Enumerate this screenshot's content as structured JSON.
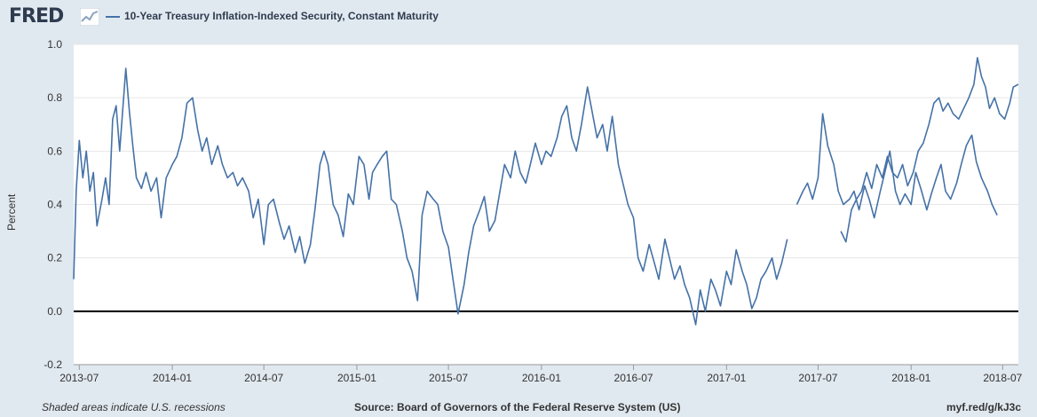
{
  "header": {
    "logo_text": "FRED",
    "series_name": "10-Year Treasury Inflation-Indexed Security, Constant Maturity"
  },
  "colors": {
    "series": "#4572a7",
    "background": "#e1e9f0",
    "plot_background": "#ffffff",
    "zero_line": "#000000"
  },
  "footer": {
    "recession_note": "Shaded areas indicate U.S. recessions",
    "source": "Source: Board of Governors of the Federal Reserve System (US)",
    "short_url": "myf.red/g/kJ3c"
  },
  "chart_data": {
    "type": "line",
    "title": "10-Year Treasury Inflation-Indexed Security, Constant Maturity",
    "xlabel": "",
    "ylabel": "Percent",
    "ylim": [
      -0.2,
      1.0
    ],
    "xlim": [
      "2013-06-20",
      "2018-08-01"
    ],
    "yticks": [
      "-0.2",
      "0.0",
      "0.2",
      "0.4",
      "0.6",
      "0.8",
      "1.0"
    ],
    "xticks": [
      "2013-07",
      "2014-01",
      "2014-07",
      "2015-01",
      "2015-07",
      "2016-01",
      "2016-07",
      "2017-01",
      "2017-07",
      "2018-01",
      "2018-07"
    ],
    "grid": true,
    "legend": "top-left",
    "series": [
      {
        "name": "10-Year Treasury Inflation-Indexed Security, Constant Maturity",
        "points": [
          [
            "2013-06-20",
            0.12
          ],
          [
            "2013-06-25",
            0.45
          ],
          [
            "2013-07-01",
            0.64
          ],
          [
            "2013-07-08",
            0.5
          ],
          [
            "2013-07-15",
            0.6
          ],
          [
            "2013-07-22",
            0.45
          ],
          [
            "2013-07-29",
            0.52
          ],
          [
            "2013-08-05",
            0.32
          ],
          [
            "2013-08-15",
            0.42
          ],
          [
            "2013-08-22",
            0.5
          ],
          [
            "2013-08-29",
            0.4
          ],
          [
            "2013-09-05",
            0.72
          ],
          [
            "2013-09-12",
            0.77
          ],
          [
            "2013-09-19",
            0.6
          ],
          [
            "2013-09-26",
            0.78
          ],
          [
            "2013-10-01",
            0.91
          ],
          [
            "2013-10-08",
            0.75
          ],
          [
            "2013-10-15",
            0.62
          ],
          [
            "2013-10-22",
            0.5
          ],
          [
            "2013-11-01",
            0.46
          ],
          [
            "2013-11-10",
            0.52
          ],
          [
            "2013-11-20",
            0.45
          ],
          [
            "2013-12-01",
            0.5
          ],
          [
            "2013-12-10",
            0.35
          ],
          [
            "2013-12-20",
            0.5
          ],
          [
            "2014-01-01",
            0.55
          ],
          [
            "2014-01-10",
            0.58
          ],
          [
            "2014-01-20",
            0.65
          ],
          [
            "2014-01-30",
            0.78
          ],
          [
            "2014-02-10",
            0.8
          ],
          [
            "2014-02-20",
            0.68
          ],
          [
            "2014-03-01",
            0.6
          ],
          [
            "2014-03-10",
            0.65
          ],
          [
            "2014-03-20",
            0.55
          ],
          [
            "2014-04-01",
            0.62
          ],
          [
            "2014-04-10",
            0.55
          ],
          [
            "2014-04-20",
            0.5
          ],
          [
            "2014-05-01",
            0.52
          ],
          [
            "2014-05-10",
            0.47
          ],
          [
            "2014-05-20",
            0.5
          ],
          [
            "2014-06-01",
            0.45
          ],
          [
            "2014-06-10",
            0.35
          ],
          [
            "2014-06-20",
            0.42
          ],
          [
            "2014-07-01",
            0.25
          ],
          [
            "2014-07-10",
            0.4
          ],
          [
            "2014-07-20",
            0.42
          ],
          [
            "2014-08-01",
            0.33
          ],
          [
            "2014-08-10",
            0.27
          ],
          [
            "2014-08-20",
            0.32
          ],
          [
            "2014-09-01",
            0.22
          ],
          [
            "2014-09-10",
            0.28
          ],
          [
            "2014-09-20",
            0.18
          ],
          [
            "2014-10-01",
            0.25
          ],
          [
            "2014-10-10",
            0.38
          ],
          [
            "2014-10-20",
            0.55
          ],
          [
            "2014-10-28",
            0.6
          ],
          [
            "2014-11-05",
            0.55
          ],
          [
            "2014-11-15",
            0.4
          ],
          [
            "2014-11-25",
            0.36
          ],
          [
            "2014-12-05",
            0.28
          ],
          [
            "2014-12-15",
            0.44
          ],
          [
            "2014-12-25",
            0.4
          ],
          [
            "2015-01-05",
            0.58
          ],
          [
            "2015-01-15",
            0.55
          ],
          [
            "2015-01-25",
            0.42
          ],
          [
            "2015-02-01",
            0.52
          ],
          [
            "2015-02-10",
            0.55
          ],
          [
            "2015-02-20",
            0.58
          ],
          [
            "2015-03-01",
            0.6
          ],
          [
            "2015-03-10",
            0.42
          ],
          [
            "2015-03-20",
            0.4
          ],
          [
            "2015-04-01",
            0.3
          ],
          [
            "2015-04-10",
            0.2
          ],
          [
            "2015-04-20",
            0.15
          ],
          [
            "2015-05-01",
            0.04
          ],
          [
            "2015-05-10",
            0.36
          ],
          [
            "2015-05-20",
            0.45
          ],
          [
            "2015-06-01",
            0.42
          ],
          [
            "2015-06-10",
            0.4
          ],
          [
            "2015-06-20",
            0.3
          ],
          [
            "2015-07-01",
            0.24
          ],
          [
            "2015-07-10",
            0.12
          ],
          [
            "2015-07-20",
            -0.01
          ],
          [
            "2015-08-01",
            0.1
          ],
          [
            "2015-08-10",
            0.22
          ],
          [
            "2015-08-20",
            0.32
          ],
          [
            "2015-09-01",
            0.38
          ],
          [
            "2015-09-10",
            0.43
          ],
          [
            "2015-09-20",
            0.3
          ],
          [
            "2015-10-01",
            0.34
          ],
          [
            "2015-10-10",
            0.44
          ],
          [
            "2015-10-20",
            0.55
          ],
          [
            "2015-11-01",
            0.5
          ],
          [
            "2015-11-10",
            0.6
          ],
          [
            "2015-11-20",
            0.52
          ],
          [
            "2015-12-01",
            0.48
          ],
          [
            "2015-12-10",
            0.55
          ],
          [
            "2015-12-20",
            0.63
          ],
          [
            "2016-01-01",
            0.55
          ],
          [
            "2016-01-10",
            0.6
          ],
          [
            "2016-01-20",
            0.58
          ],
          [
            "2016-02-01",
            0.65
          ],
          [
            "2016-02-10",
            0.73
          ],
          [
            "2016-02-20",
            0.77
          ],
          [
            "2016-03-01",
            0.65
          ],
          [
            "2016-03-10",
            0.6
          ],
          [
            "2016-03-20",
            0.7
          ],
          [
            "2016-04-01",
            0.84
          ],
          [
            "2016-04-10",
            0.75
          ],
          [
            "2016-04-20",
            0.65
          ],
          [
            "2016-05-01",
            0.7
          ],
          [
            "2016-05-10",
            0.6
          ],
          [
            "2016-05-20",
            0.73
          ],
          [
            "2016-06-01",
            0.55
          ],
          [
            "2016-06-10",
            0.48
          ],
          [
            "2016-06-20",
            0.4
          ],
          [
            "2016-07-01",
            0.35
          ],
          [
            "2016-07-10",
            0.2
          ],
          [
            "2016-07-20",
            0.15
          ],
          [
            "2016-08-01",
            0.25
          ],
          [
            "2016-08-10",
            0.19
          ],
          [
            "2016-08-20",
            0.12
          ],
          [
            "2016-09-01",
            0.27
          ],
          [
            "2016-09-10",
            0.2
          ],
          [
            "2016-09-20",
            0.12
          ],
          [
            "2016-10-01",
            0.17
          ],
          [
            "2016-10-10",
            0.1
          ],
          [
            "2016-10-20",
            0.05
          ],
          [
            "2016-11-01",
            -0.05
          ],
          [
            "2016-11-10",
            0.08
          ],
          [
            "2016-11-20",
            0.0
          ],
          [
            "2016-12-01",
            0.12
          ],
          [
            "2016-12-10",
            0.08
          ],
          [
            "2016-12-20",
            0.02
          ],
          [
            "2017-01-01",
            0.15
          ],
          [
            "2017-01-10",
            0.1
          ],
          [
            "2017-01-20",
            0.23
          ],
          [
            "2017-02-01",
            0.15
          ],
          [
            "2017-02-10",
            0.1
          ],
          [
            "2017-02-20",
            0.01
          ],
          [
            "2017-03-01",
            0.05
          ],
          [
            "2017-03-10",
            0.12
          ],
          [
            "2017-03-20",
            0.15
          ],
          [
            "2017-04-01",
            0.2
          ],
          [
            "2017-04-10",
            0.12
          ],
          [
            "2017-04-20",
            0.18
          ],
          [
            "2017-05-01",
            0.27
          ]
        ]
      },
      {
        "name": "",
        "points": [
          [
            "2017-05-20",
            0.4
          ],
          [
            "2017-06-01",
            0.45
          ],
          [
            "2017-06-10",
            0.48
          ],
          [
            "2017-06-20",
            0.42
          ],
          [
            "2017-07-01",
            0.5
          ],
          [
            "2017-07-10",
            0.74
          ],
          [
            "2017-07-20",
            0.62
          ],
          [
            "2017-08-01",
            0.55
          ],
          [
            "2017-08-10",
            0.45
          ],
          [
            "2017-08-20",
            0.4
          ],
          [
            "2017-09-01",
            0.42
          ],
          [
            "2017-09-10",
            0.45
          ],
          [
            "2017-09-20",
            0.38
          ],
          [
            "2017-10-01",
            0.47
          ],
          [
            "2017-10-10",
            0.42
          ],
          [
            "2017-10-20",
            0.35
          ],
          [
            "2017-11-01",
            0.45
          ],
          [
            "2017-11-10",
            0.52
          ],
          [
            "2017-11-20",
            0.6
          ],
          [
            "2017-12-01",
            0.45
          ],
          [
            "2017-12-10",
            0.4
          ],
          [
            "2017-12-20",
            0.44
          ],
          [
            "2018-01-01",
            0.4
          ],
          [
            "2018-01-10",
            0.52
          ],
          [
            "2018-01-20",
            0.46
          ],
          [
            "2018-02-01",
            0.38
          ],
          [
            "2018-02-10",
            0.44
          ],
          [
            "2018-02-20",
            0.5
          ],
          [
            "2018-03-01",
            0.55
          ],
          [
            "2018-03-10",
            0.45
          ],
          [
            "2018-03-20",
            0.42
          ],
          [
            "2018-04-01",
            0.48
          ],
          [
            "2018-04-10",
            0.55
          ],
          [
            "2018-04-20",
            0.62
          ],
          [
            "2018-05-01",
            0.66
          ],
          [
            "2018-05-10",
            0.56
          ],
          [
            "2018-05-20",
            0.5
          ],
          [
            "2018-06-01",
            0.45
          ],
          [
            "2018-06-10",
            0.4
          ],
          [
            "2018-06-20",
            0.36
          ]
        ]
      },
      {
        "name": "",
        "points": [
          [
            "2017-08-15",
            0.3
          ],
          [
            "2017-08-25",
            0.26
          ],
          [
            "2017-09-05",
            0.38
          ],
          [
            "2017-09-15",
            0.42
          ],
          [
            "2017-09-25",
            0.45
          ],
          [
            "2017-10-05",
            0.52
          ],
          [
            "2017-10-15",
            0.46
          ],
          [
            "2017-10-25",
            0.55
          ],
          [
            "2017-11-05",
            0.5
          ],
          [
            "2017-11-15",
            0.58
          ],
          [
            "2017-11-25",
            0.52
          ],
          [
            "2017-12-05",
            0.5
          ],
          [
            "2017-12-15",
            0.55
          ],
          [
            "2017-12-25",
            0.47
          ],
          [
            "2018-01-05",
            0.52
          ],
          [
            "2018-01-15",
            0.6
          ],
          [
            "2018-01-25",
            0.63
          ],
          [
            "2018-02-05",
            0.7
          ],
          [
            "2018-02-15",
            0.78
          ],
          [
            "2018-02-25",
            0.8
          ],
          [
            "2018-03-05",
            0.75
          ],
          [
            "2018-03-15",
            0.78
          ],
          [
            "2018-03-25",
            0.74
          ],
          [
            "2018-04-05",
            0.72
          ],
          [
            "2018-04-15",
            0.76
          ],
          [
            "2018-04-25",
            0.8
          ],
          [
            "2018-05-05",
            0.85
          ],
          [
            "2018-05-12",
            0.95
          ],
          [
            "2018-05-20",
            0.88
          ],
          [
            "2018-05-28",
            0.84
          ],
          [
            "2018-06-05",
            0.76
          ],
          [
            "2018-06-15",
            0.8
          ],
          [
            "2018-06-25",
            0.74
          ],
          [
            "2018-07-05",
            0.72
          ],
          [
            "2018-07-15",
            0.78
          ],
          [
            "2018-07-22",
            0.84
          ],
          [
            "2018-08-01",
            0.85
          ]
        ]
      }
    ]
  }
}
